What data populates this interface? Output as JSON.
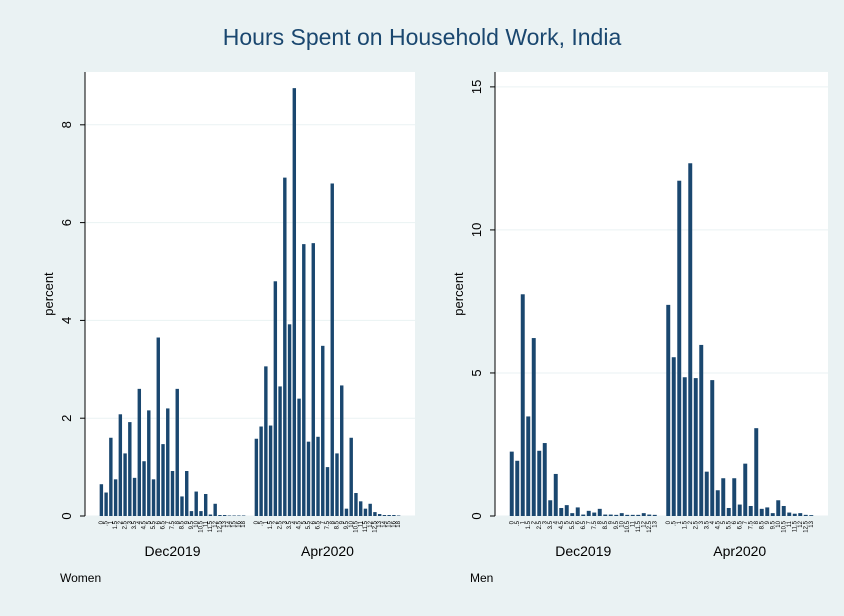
{
  "title": "Hours Spent on Household Work, India",
  "chart_data": [
    {
      "type": "bar",
      "note": "Women",
      "ylabel": "percent",
      "color": "#1a476f",
      "ylim": [
        0,
        9.08
      ],
      "yticks": [
        0,
        2,
        4,
        6,
        8
      ],
      "grid": true,
      "groups": [
        {
          "name": "Dec2019",
          "categories": [
            "0",
            ".5",
            "1",
            "1.5",
            "2",
            "2.5",
            "3",
            "3.5",
            "4",
            "4.5",
            "5",
            "5.5",
            "6",
            "6.5",
            "7",
            "7.5",
            "8",
            "8.5",
            "9",
            "9.5",
            "10",
            "10.5",
            "11",
            "11.5",
            "12",
            "12.5",
            "13",
            "14",
            "15",
            "16",
            "18"
          ],
          "values": [
            0.65,
            0.48,
            1.6,
            0.75,
            2.08,
            1.28,
            1.92,
            0.78,
            2.6,
            1.12,
            2.16,
            0.75,
            3.65,
            1.47,
            2.2,
            0.92,
            2.6,
            0.4,
            0.92,
            0.1,
            0.5,
            0.1,
            0.45,
            0.03,
            0.25,
            0.02,
            0.02,
            0.01,
            0.01,
            0.01,
            0.01
          ]
        },
        {
          "name": "Apr2020",
          "categories": [
            "0",
            ".5",
            "1",
            "1.5",
            "2",
            "2.5",
            "3",
            "3.5",
            "4",
            "4.5",
            "5",
            "5.5",
            "6",
            "6.5",
            "7",
            "7.5",
            "8",
            "8.5",
            "9",
            "9.5",
            "10",
            "10.5",
            "11",
            "11.5",
            "12",
            "12.5",
            "13",
            "14",
            "15",
            "16",
            "18"
          ],
          "values": [
            1.58,
            1.83,
            3.06,
            1.85,
            4.8,
            2.65,
            6.92,
            3.92,
            8.75,
            2.4,
            5.56,
            1.52,
            5.58,
            1.62,
            3.48,
            1.0,
            6.8,
            1.28,
            2.67,
            0.15,
            1.6,
            0.47,
            0.3,
            0.15,
            0.25,
            0.08,
            0.04,
            0.02,
            0.02,
            0.02,
            0.01
          ]
        }
      ]
    },
    {
      "type": "bar",
      "note": "Men",
      "ylabel": "percent",
      "color": "#1a476f",
      "ylim": [
        0,
        15.52
      ],
      "yticks": [
        0,
        5,
        10,
        15
      ],
      "grid": true,
      "groups": [
        {
          "name": "Dec2019",
          "categories": [
            "0",
            ".5",
            "1",
            "1.5",
            "2",
            "2.5",
            "3",
            "3.5",
            "4",
            "4.5",
            "5",
            "5.5",
            "6",
            "6.5",
            "7",
            "7.5",
            "8",
            "8.5",
            "9",
            "9.5",
            "10",
            "10.5",
            "11",
            "11.5",
            "12",
            "12.5",
            "13"
          ],
          "values": [
            2.25,
            1.93,
            7.75,
            3.48,
            6.22,
            2.28,
            2.55,
            0.55,
            1.47,
            0.28,
            0.38,
            0.1,
            0.3,
            0.05,
            0.18,
            0.12,
            0.25,
            0.05,
            0.05,
            0.04,
            0.1,
            0.04,
            0.04,
            0.04,
            0.1,
            0.05,
            0.04
          ]
        },
        {
          "name": "Apr2020",
          "categories": [
            "0",
            ".5",
            "1",
            "1.5",
            "2",
            "2.5",
            "3",
            "3.5",
            "4",
            "4.5",
            "5",
            "5.5",
            "6",
            "6.5",
            "7",
            "7.5",
            "8",
            "8.5",
            "9",
            "9.5",
            "10",
            "10.5",
            "11",
            "11.5",
            "12",
            "12.5",
            "13"
          ],
          "values": [
            7.38,
            5.55,
            11.72,
            4.85,
            12.33,
            4.82,
            5.98,
            1.55,
            4.75,
            0.9,
            1.32,
            0.28,
            1.32,
            0.4,
            1.83,
            0.35,
            3.07,
            0.25,
            0.3,
            0.1,
            0.55,
            0.35,
            0.12,
            0.08,
            0.1,
            0.04,
            0.03
          ]
        }
      ]
    }
  ]
}
